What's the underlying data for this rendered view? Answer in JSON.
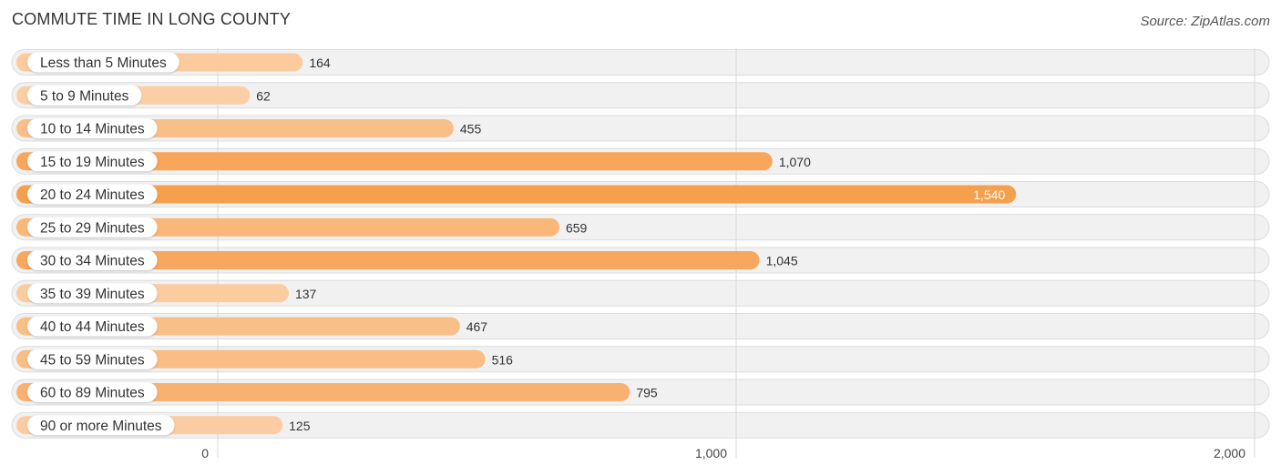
{
  "chart_data": {
    "type": "bar",
    "orientation": "horizontal",
    "title": "COMMUTE TIME IN LONG COUNTY",
    "source": "Source: ZipAtlas.com",
    "categories": [
      "Less than 5 Minutes",
      "5 to 9 Minutes",
      "10 to 14 Minutes",
      "15 to 19 Minutes",
      "20 to 24 Minutes",
      "25 to 29 Minutes",
      "30 to 34 Minutes",
      "35 to 39 Minutes",
      "40 to 44 Minutes",
      "45 to 59 Minutes",
      "60 to 89 Minutes",
      "90 or more Minutes"
    ],
    "values": [
      164,
      62,
      455,
      1070,
      1540,
      659,
      1045,
      137,
      467,
      516,
      795,
      125
    ],
    "value_labels": [
      "164",
      "62",
      "455",
      "1,070",
      "1,540",
      "659",
      "1,045",
      "137",
      "467",
      "516",
      "795",
      "125"
    ],
    "xlim": [
      0,
      2000
    ],
    "ticks": [
      0,
      1000,
      2000
    ],
    "tick_labels": [
      "0",
      "1,000",
      "2,000"
    ],
    "xlabel": "",
    "ylabel": "",
    "grid": true,
    "colors": {
      "bar_strong": "#f7a55a",
      "bar_light": "#fbcfa6",
      "highlight": "#f5a04d"
    }
  }
}
